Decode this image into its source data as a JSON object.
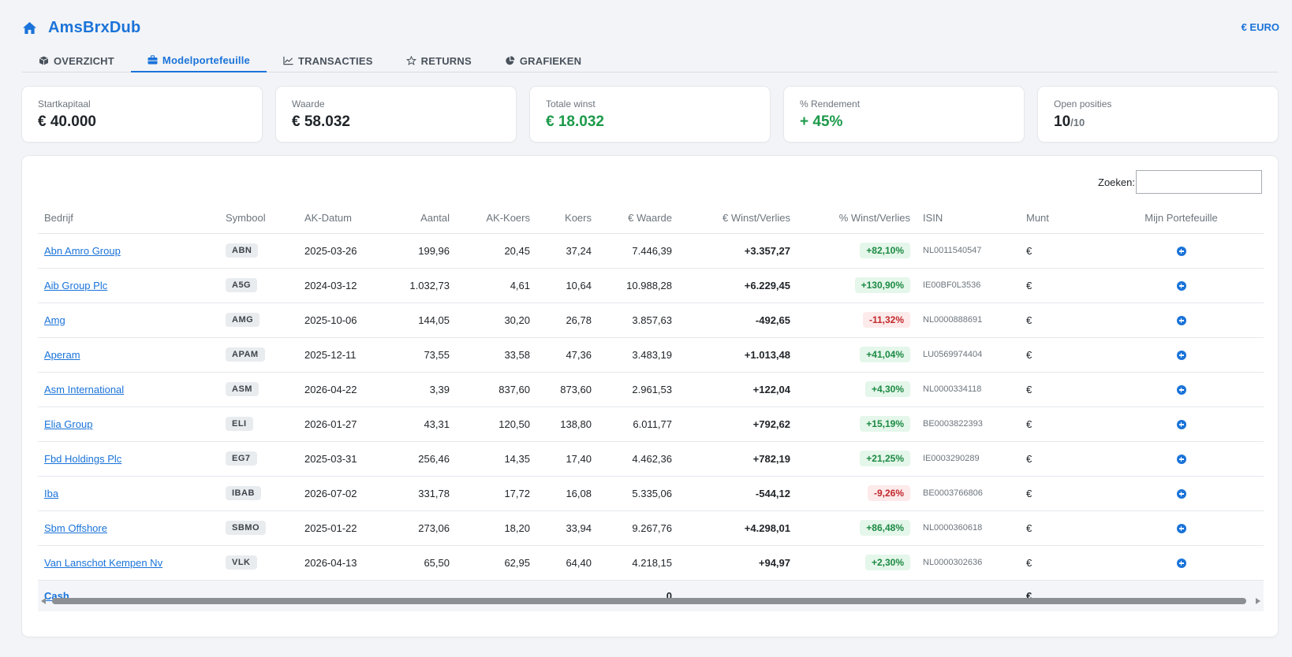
{
  "app": {
    "name": "AmsBrxDub",
    "currency": "€ EURO"
  },
  "tabs": [
    {
      "label": "OVERZICHT",
      "icon": "cube-icon",
      "active": false
    },
    {
      "label": "Modelportefeuille",
      "icon": "briefcase-icon",
      "active": true
    },
    {
      "label": "TRANSACTIES",
      "icon": "line-chart-icon",
      "active": false
    },
    {
      "label": "RETURNS",
      "icon": "star-icon",
      "active": false
    },
    {
      "label": "GRAFIEKEN",
      "icon": "pie-chart-icon",
      "active": false
    }
  ],
  "cards": [
    {
      "label": "Startkapitaal",
      "value": "€ 40.000"
    },
    {
      "label": "Waarde",
      "value": "€ 58.032"
    },
    {
      "label": "Totale winst",
      "value": "€ 18.032"
    },
    {
      "label": "% Rendement",
      "value": "+ 45%"
    },
    {
      "label": "Open posities",
      "value": "10",
      "suffix": "/10"
    }
  ],
  "search": {
    "label": "Zoeken:",
    "value": ""
  },
  "table": {
    "headers": [
      "Bedrijf",
      "Symbool",
      "AK-Datum",
      "Aantal",
      "AK-Koers",
      "Koers",
      "€ Waarde",
      "€ Winst/Verlies",
      "% Winst/Verlies",
      "ISIN",
      "Munt",
      "Mijn Portefeuille"
    ],
    "rows": [
      {
        "company": "Abn Amro Group",
        "symbol": "ABN",
        "date": "2025-03-26",
        "amount": "199,96",
        "buy": "20,45",
        "price": "37,24",
        "value": "7.446,39",
        "pl": "+3.357,27",
        "pct": "+82,10%",
        "isin": "NL0011540547",
        "currency": "€"
      },
      {
        "company": "Aib Group Plc",
        "symbol": "A5G",
        "date": "2024-03-12",
        "amount": "1.032,73",
        "buy": "4,61",
        "price": "10,64",
        "value": "10.988,28",
        "pl": "+6.229,45",
        "pct": "+130,90%",
        "isin": "IE00BF0L3536",
        "currency": "€"
      },
      {
        "company": "Amg",
        "symbol": "AMG",
        "date": "2025-10-06",
        "amount": "144,05",
        "buy": "30,20",
        "price": "26,78",
        "value": "3.857,63",
        "pl": "-492,65",
        "pct": "-11,32%",
        "isin": "NL0000888691",
        "currency": "€"
      },
      {
        "company": "Aperam",
        "symbol": "APAM",
        "date": "2025-12-11",
        "amount": "73,55",
        "buy": "33,58",
        "price": "47,36",
        "value": "3.483,19",
        "pl": "+1.013,48",
        "pct": "+41,04%",
        "isin": "LU0569974404",
        "currency": "€"
      },
      {
        "company": "Asm International",
        "symbol": "ASM",
        "date": "2026-04-22",
        "amount": "3,39",
        "buy": "837,60",
        "price": "873,60",
        "value": "2.961,53",
        "pl": "+122,04",
        "pct": "+4,30%",
        "isin": "NL0000334118",
        "currency": "€"
      },
      {
        "company": "Elia Group",
        "symbol": "ELI",
        "date": "2026-01-27",
        "amount": "43,31",
        "buy": "120,50",
        "price": "138,80",
        "value": "6.011,77",
        "pl": "+792,62",
        "pct": "+15,19%",
        "isin": "BE0003822393",
        "currency": "€"
      },
      {
        "company": "Fbd Holdings Plc",
        "symbol": "EG7",
        "date": "2025-03-31",
        "amount": "256,46",
        "buy": "14,35",
        "price": "17,40",
        "value": "4.462,36",
        "pl": "+782,19",
        "pct": "+21,25%",
        "isin": "IE0003290289",
        "currency": "€"
      },
      {
        "company": "Iba",
        "symbol": "IBAB",
        "date": "2026-07-02",
        "amount": "331,78",
        "buy": "17,72",
        "price": "16,08",
        "value": "5.335,06",
        "pl": "-544,12",
        "pct": "-9,26%",
        "isin": "BE0003766806",
        "currency": "€"
      },
      {
        "company": "Sbm Offshore",
        "symbol": "SBMO",
        "date": "2025-01-22",
        "amount": "273,06",
        "buy": "18,20",
        "price": "33,94",
        "value": "9.267,76",
        "pl": "+4.298,01",
        "pct": "+86,48%",
        "isin": "NL0000360618",
        "currency": "€"
      },
      {
        "company": "Van Lanschot Kempen Nv",
        "symbol": "VLK",
        "date": "2026-04-13",
        "amount": "65,50",
        "buy": "62,95",
        "price": "64,40",
        "value": "4.218,15",
        "pl": "+94,97",
        "pct": "+2,30%",
        "isin": "NL0000302636",
        "currency": "€"
      }
    ],
    "cash": {
      "label": "Cash",
      "value": "0",
      "currency": "€"
    }
  },
  "colors": {
    "accent": "#1a73d9",
    "positive": "#1b8a43",
    "negative": "#c0282c"
  }
}
